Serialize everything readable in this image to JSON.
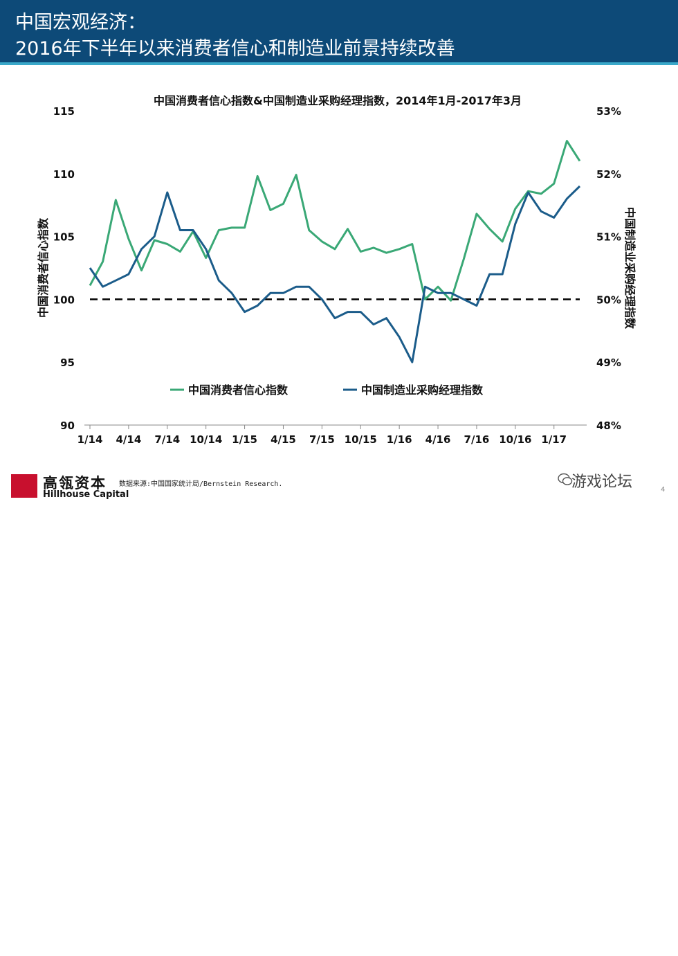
{
  "header": {
    "line1": "中国宏观经济：",
    "line2": "2016年下半年以来消费者信心和制造业前景持续改善"
  },
  "colors": {
    "header_bg": "#0d4a78",
    "accent_line": "#3aa8c9",
    "consumer_series": "#3aa876",
    "pmi_series": "#1b5c8a",
    "baseline": "#000000"
  },
  "chart_data": {
    "type": "line",
    "title": "中国消费者信心指数&中国制造业采购经理指数，2014年1月-2017年3月",
    "ylabel_left": "中国消费者信心指数",
    "ylabel_right": "中国制造业采购经理指数",
    "ylim_left": [
      90,
      115
    ],
    "ylim_right": [
      48,
      53
    ],
    "yticks_left": [
      "90",
      "95",
      "100",
      "105",
      "110",
      "115"
    ],
    "yticks_right": [
      "48%",
      "49%",
      "50%",
      "51%",
      "52%",
      "53%"
    ],
    "xtick_labels": [
      "1/14",
      "4/14",
      "7/14",
      "10/14",
      "1/15",
      "4/15",
      "7/15",
      "10/15",
      "1/16",
      "4/16",
      "7/16",
      "10/16",
      "1/17"
    ],
    "months": [
      "2014-01",
      "2014-02",
      "2014-03",
      "2014-04",
      "2014-05",
      "2014-06",
      "2014-07",
      "2014-08",
      "2014-09",
      "2014-10",
      "2014-11",
      "2014-12",
      "2015-01",
      "2015-02",
      "2015-03",
      "2015-04",
      "2015-05",
      "2015-06",
      "2015-07",
      "2015-08",
      "2015-09",
      "2015-10",
      "2015-11",
      "2015-12",
      "2016-01",
      "2016-02",
      "2016-03",
      "2016-04",
      "2016-05",
      "2016-06",
      "2016-07",
      "2016-08",
      "2016-09",
      "2016-10",
      "2016-11",
      "2016-12",
      "2017-01",
      "2017-02",
      "2017-03"
    ],
    "baseline": {
      "axis": "right",
      "value": 50,
      "style": "dashed"
    },
    "legend_position": "lower-center",
    "grid": false,
    "series": [
      {
        "name": "中国消费者信心指数",
        "axis": "left",
        "values": [
          101.1,
          103.0,
          107.9,
          104.8,
          102.3,
          104.7,
          104.4,
          103.8,
          105.4,
          103.3,
          105.5,
          105.7,
          105.7,
          109.8,
          107.1,
          107.6,
          109.9,
          105.5,
          104.6,
          104.0,
          105.6,
          103.8,
          104.1,
          103.7,
          104.0,
          104.4,
          100.0,
          101.0,
          99.9,
          103.2,
          106.8,
          105.6,
          104.6,
          107.2,
          108.6,
          108.4,
          109.2,
          112.6,
          111.0
        ]
      },
      {
        "name": "中国制造业采购经理指数",
        "axis": "right",
        "values": [
          50.5,
          50.2,
          50.3,
          50.4,
          50.8,
          51.0,
          51.7,
          51.1,
          51.1,
          50.8,
          50.3,
          50.1,
          49.8,
          49.9,
          50.1,
          50.1,
          50.2,
          50.2,
          50.0,
          49.7,
          49.8,
          49.8,
          49.6,
          49.7,
          49.4,
          49.0,
          50.2,
          50.1,
          50.1,
          50.0,
          49.9,
          50.4,
          50.4,
          51.2,
          51.7,
          51.4,
          51.3,
          51.6,
          51.8
        ]
      }
    ]
  },
  "branding": {
    "logo_mark": "HILLHOUSE",
    "name_cn": "高瓴资本",
    "name_en": "Hillhouse Capital"
  },
  "source_text": "数据来源:中国国家统计局/Bernstein Research.",
  "watermark": "游戏论坛",
  "page_number": "4"
}
